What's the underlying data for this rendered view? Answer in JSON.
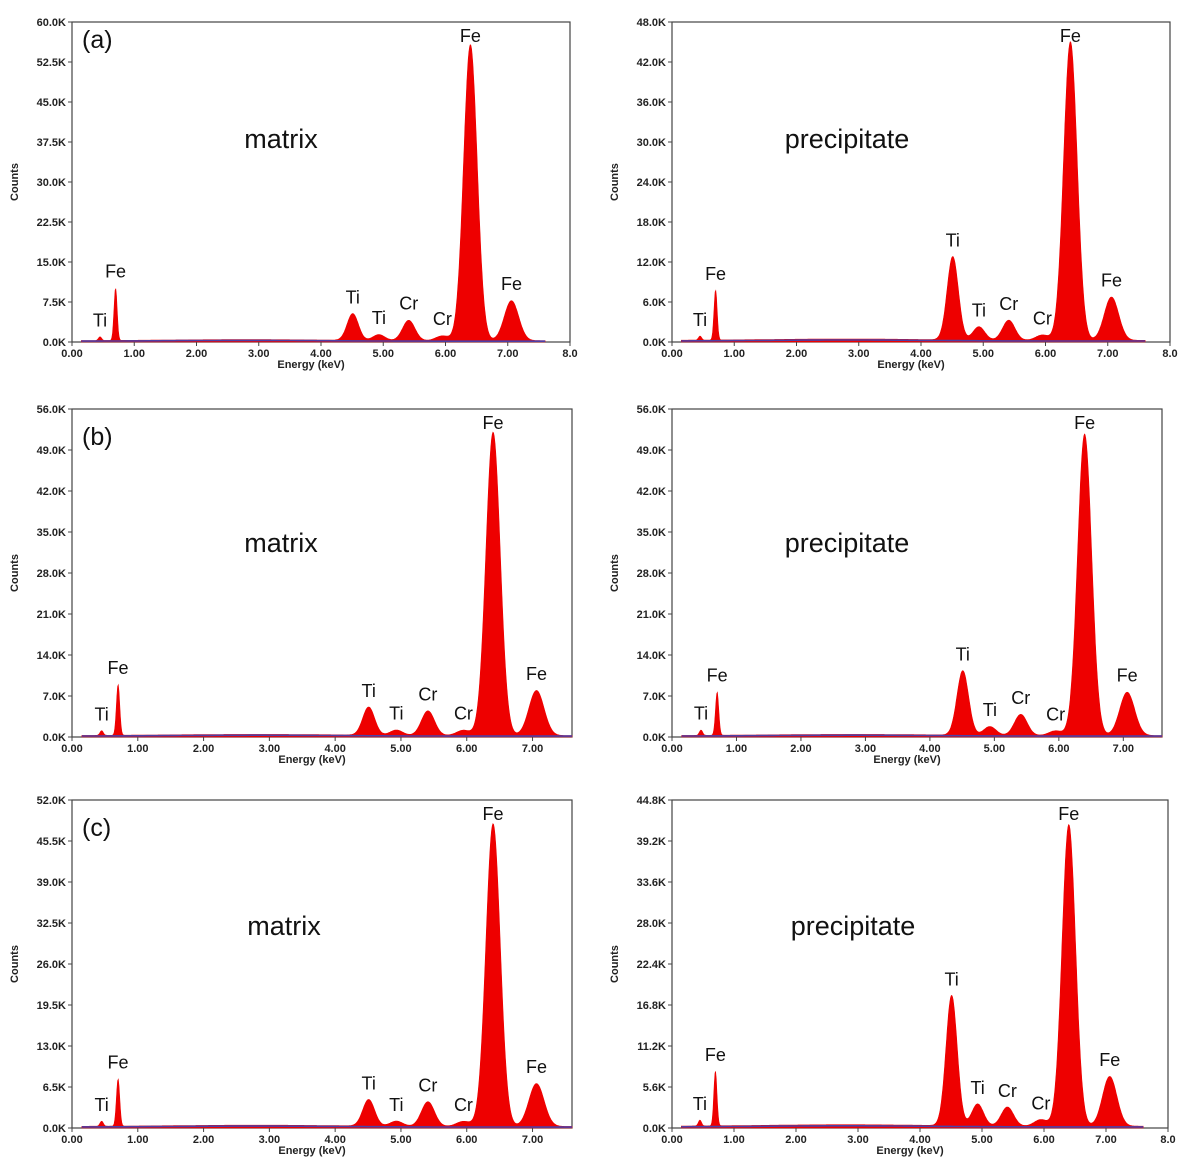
{
  "chart_data": [
    {
      "type": "area",
      "panel_label": "(a)",
      "sample_label": "matrix",
      "xlabel": "Energy (keV)",
      "ylabel": "Counts",
      "xlim": [
        0,
        8
      ],
      "ylim": [
        0,
        60000
      ],
      "xticks": [
        "0.00",
        "1.00",
        "2.00",
        "3.00",
        "4.00",
        "5.00",
        "6.00",
        "7.00",
        "8.0"
      ],
      "xtick_values": [
        0,
        1,
        2,
        3,
        4,
        5,
        6,
        7,
        8
      ],
      "yticks": [
        "0.0K",
        "7.5K",
        "15.0K",
        "22.5K",
        "30.0K",
        "37.5K",
        "45.0K",
        "52.5K",
        "60.0K"
      ],
      "ytick_values": [
        0,
        7500,
        15000,
        22500,
        30000,
        37500,
        45000,
        52500,
        60000
      ],
      "peaks": [
        {
          "element": "Ti",
          "energy": 0.45,
          "counts": 700
        },
        {
          "element": "Fe",
          "energy": 0.7,
          "counts": 9800
        },
        {
          "element": "Ti",
          "energy": 4.51,
          "counts": 5000
        },
        {
          "element": "Ti",
          "energy": 4.93,
          "counts": 1100
        },
        {
          "element": "Cr",
          "energy": 5.41,
          "counts": 3800
        },
        {
          "element": "Cr",
          "energy": 5.95,
          "counts": 900
        },
        {
          "element": "Fe",
          "energy": 6.4,
          "counts": 55500
        },
        {
          "element": "Fe",
          "energy": 7.06,
          "counts": 7500
        }
      ]
    },
    {
      "type": "area",
      "panel_label": "",
      "sample_label": "precipitate",
      "xlabel": "Energy (keV)",
      "ylabel": "Counts",
      "xlim": [
        0,
        8
      ],
      "ylim": [
        0,
        48000
      ],
      "xticks": [
        "0.00",
        "1.00",
        "2.00",
        "3.00",
        "4.00",
        "5.00",
        "6.00",
        "7.00",
        "8.0"
      ],
      "xtick_values": [
        0,
        1,
        2,
        3,
        4,
        5,
        6,
        7,
        8
      ],
      "yticks": [
        "0.0K",
        "6.0K",
        "12.0K",
        "18.0K",
        "24.0K",
        "30.0K",
        "36.0K",
        "42.0K",
        "48.0K"
      ],
      "ytick_values": [
        0,
        6000,
        12000,
        18000,
        24000,
        30000,
        36000,
        42000,
        48000
      ],
      "peaks": [
        {
          "element": "Ti",
          "energy": 0.45,
          "counts": 600
        },
        {
          "element": "Fe",
          "energy": 0.7,
          "counts": 7500
        },
        {
          "element": "Ti",
          "energy": 4.51,
          "counts": 12500
        },
        {
          "element": "Ti",
          "energy": 4.93,
          "counts": 2000
        },
        {
          "element": "Cr",
          "energy": 5.41,
          "counts": 3000
        },
        {
          "element": "Cr",
          "energy": 5.95,
          "counts": 800
        },
        {
          "element": "Fe",
          "energy": 6.4,
          "counts": 44800
        },
        {
          "element": "Fe",
          "energy": 7.06,
          "counts": 6500
        }
      ]
    },
    {
      "type": "area",
      "panel_label": "(b)",
      "sample_label": "matrix",
      "xlabel": "Energy (keV)",
      "ylabel": "Counts",
      "xlim": [
        0,
        7.6
      ],
      "ylim": [
        0,
        56000
      ],
      "xticks": [
        "0.00",
        "1.00",
        "2.00",
        "3.00",
        "4.00",
        "5.00",
        "6.00",
        "7.00"
      ],
      "xtick_values": [
        0,
        1,
        2,
        3,
        4,
        5,
        6,
        7
      ],
      "yticks": [
        "0.0K",
        "7.0K",
        "14.0K",
        "21.0K",
        "28.0K",
        "35.0K",
        "42.0K",
        "49.0K",
        "56.0K"
      ],
      "ytick_values": [
        0,
        7000,
        14000,
        21000,
        28000,
        35000,
        42000,
        49000,
        56000
      ],
      "peaks": [
        {
          "element": "Ti",
          "energy": 0.45,
          "counts": 800
        },
        {
          "element": "Fe",
          "energy": 0.7,
          "counts": 8700
        },
        {
          "element": "Ti",
          "energy": 4.51,
          "counts": 4800
        },
        {
          "element": "Ti",
          "energy": 4.93,
          "counts": 900
        },
        {
          "element": "Cr",
          "energy": 5.41,
          "counts": 4200
        },
        {
          "element": "Cr",
          "energy": 5.95,
          "counts": 900
        },
        {
          "element": "Fe",
          "energy": 6.4,
          "counts": 51800
        },
        {
          "element": "Fe",
          "energy": 7.06,
          "counts": 7700
        }
      ]
    },
    {
      "type": "area",
      "panel_label": "",
      "sample_label": "precipitate",
      "xlabel": "Energy (keV)",
      "ylabel": "Counts",
      "xlim": [
        0,
        7.6
      ],
      "ylim": [
        0,
        56000
      ],
      "xticks": [
        "0.00",
        "1.00",
        "2.00",
        "3.00",
        "4.00",
        "5.00",
        "6.00",
        "7.00"
      ],
      "xtick_values": [
        0,
        1,
        2,
        3,
        4,
        5,
        6,
        7
      ],
      "yticks": [
        "0.0K",
        "7.0K",
        "14.0K",
        "21.0K",
        "28.0K",
        "35.0K",
        "42.0K",
        "49.0K",
        "56.0K"
      ],
      "ytick_values": [
        0,
        7000,
        14000,
        21000,
        28000,
        35000,
        42000,
        49000,
        56000
      ],
      "peaks": [
        {
          "element": "Ti",
          "energy": 0.45,
          "counts": 900
        },
        {
          "element": "Fe",
          "energy": 0.7,
          "counts": 7400
        },
        {
          "element": "Ti",
          "energy": 4.51,
          "counts": 11000
        },
        {
          "element": "Ti",
          "energy": 4.93,
          "counts": 1500
        },
        {
          "element": "Cr",
          "energy": 5.41,
          "counts": 3600
        },
        {
          "element": "Cr",
          "energy": 5.95,
          "counts": 800
        },
        {
          "element": "Fe",
          "energy": 6.4,
          "counts": 51500
        },
        {
          "element": "Fe",
          "energy": 7.06,
          "counts": 7400
        }
      ]
    },
    {
      "type": "area",
      "panel_label": "(c)",
      "sample_label": "matrix",
      "xlabel": "Energy (keV)",
      "ylabel": "Counts",
      "xlim": [
        0,
        7.6
      ],
      "ylim": [
        0,
        52000
      ],
      "xticks": [
        "0.00",
        "1.00",
        "2.00",
        "3.00",
        "4.00",
        "5.00",
        "6.00",
        "7.00"
      ],
      "xtick_values": [
        0,
        1,
        2,
        3,
        4,
        5,
        6,
        7
      ],
      "yticks": [
        "0.0K",
        "6.5K",
        "13.0K",
        "19.5K",
        "26.0K",
        "32.5K",
        "39.0K",
        "45.5K",
        "52.0K"
      ],
      "ytick_values": [
        0,
        6500,
        13000,
        19500,
        26000,
        32500,
        39000,
        45500,
        52000
      ],
      "peaks": [
        {
          "element": "Ti",
          "energy": 0.45,
          "counts": 800
        },
        {
          "element": "Fe",
          "energy": 0.7,
          "counts": 7500
        },
        {
          "element": "Ti",
          "energy": 4.51,
          "counts": 4200
        },
        {
          "element": "Ti",
          "energy": 4.93,
          "counts": 800
        },
        {
          "element": "Cr",
          "energy": 5.41,
          "counts": 3900
        },
        {
          "element": "Cr",
          "energy": 5.95,
          "counts": 800
        },
        {
          "element": "Fe",
          "energy": 6.4,
          "counts": 48000
        },
        {
          "element": "Fe",
          "energy": 7.06,
          "counts": 6800
        }
      ]
    },
    {
      "type": "area",
      "panel_label": "",
      "sample_label": "precipitate",
      "xlabel": "Energy (keV)",
      "ylabel": "Counts",
      "xlim": [
        0,
        8
      ],
      "ylim": [
        0,
        44800
      ],
      "xticks": [
        "0.00",
        "1.00",
        "2.00",
        "3.00",
        "4.00",
        "5.00",
        "6.00",
        "7.00",
        "8.0"
      ],
      "xtick_values": [
        0,
        1,
        2,
        3,
        4,
        5,
        6,
        7,
        8
      ],
      "yticks": [
        "0.0K",
        "5.6K",
        "11.2K",
        "16.8K",
        "22.4K",
        "28.0K",
        "33.6K",
        "39.2K",
        "44.8K"
      ],
      "ytick_values": [
        0,
        5600,
        11200,
        16800,
        22400,
        28000,
        33600,
        39200,
        44800
      ],
      "peaks": [
        {
          "element": "Ti",
          "energy": 0.45,
          "counts": 800
        },
        {
          "element": "Fe",
          "energy": 0.7,
          "counts": 7500
        },
        {
          "element": "Ti",
          "energy": 4.51,
          "counts": 17800
        },
        {
          "element": "Ti",
          "energy": 4.93,
          "counts": 3000
        },
        {
          "element": "Cr",
          "energy": 5.41,
          "counts": 2600
        },
        {
          "element": "Cr",
          "energy": 5.95,
          "counts": 900
        },
        {
          "element": "Fe",
          "energy": 6.4,
          "counts": 41200
        },
        {
          "element": "Fe",
          "energy": 7.06,
          "counts": 6800
        }
      ]
    }
  ],
  "colors": {
    "spectrum_fill": "#ee0000",
    "background_trace": "#4b3fa8"
  }
}
